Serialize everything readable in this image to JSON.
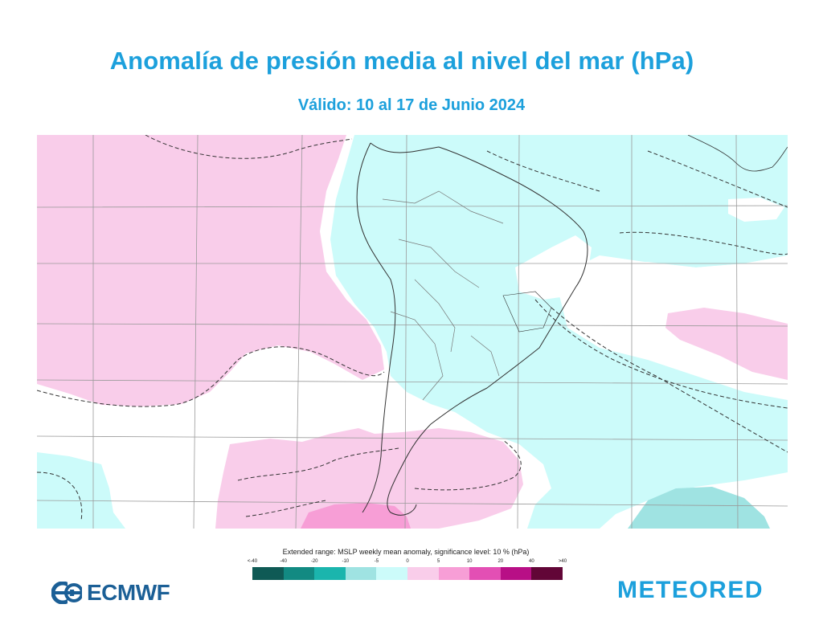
{
  "title": "Anomalía de presión media al nivel del mar  (hPa)",
  "subtitle": "Válido: 10 al 17 de Junio 2024",
  "legend": {
    "caption": "Extended range: MSLP weekly mean anomaly, significance level: 10 % (hPa)",
    "ticks": [
      "<-40",
      "-40",
      "-20",
      "-10",
      "-5",
      "0",
      "5",
      "10",
      "20",
      "40",
      ">40"
    ],
    "colors": [
      "#0f5a55",
      "#128a82",
      "#1bb5ad",
      "#9fe3e2",
      "#ccfbfa",
      "#ffffff",
      "#f9cdea",
      "#f79ed6",
      "#e34fb4",
      "#b80f86",
      "#620637"
    ]
  },
  "branding": {
    "ecmwf": "ECMWF",
    "meteored": "METEORED",
    "ecmwf_color": "#1b5f96",
    "meteored_color": "#1ca0dc"
  },
  "map_colors": {
    "positive_light": "#f9cdea",
    "positive_strong": "#f79ed6",
    "negative_light": "#ccfbfa",
    "negative_strong": "#9fe3e2",
    "land_border": "#555555",
    "grid": "#999999"
  }
}
